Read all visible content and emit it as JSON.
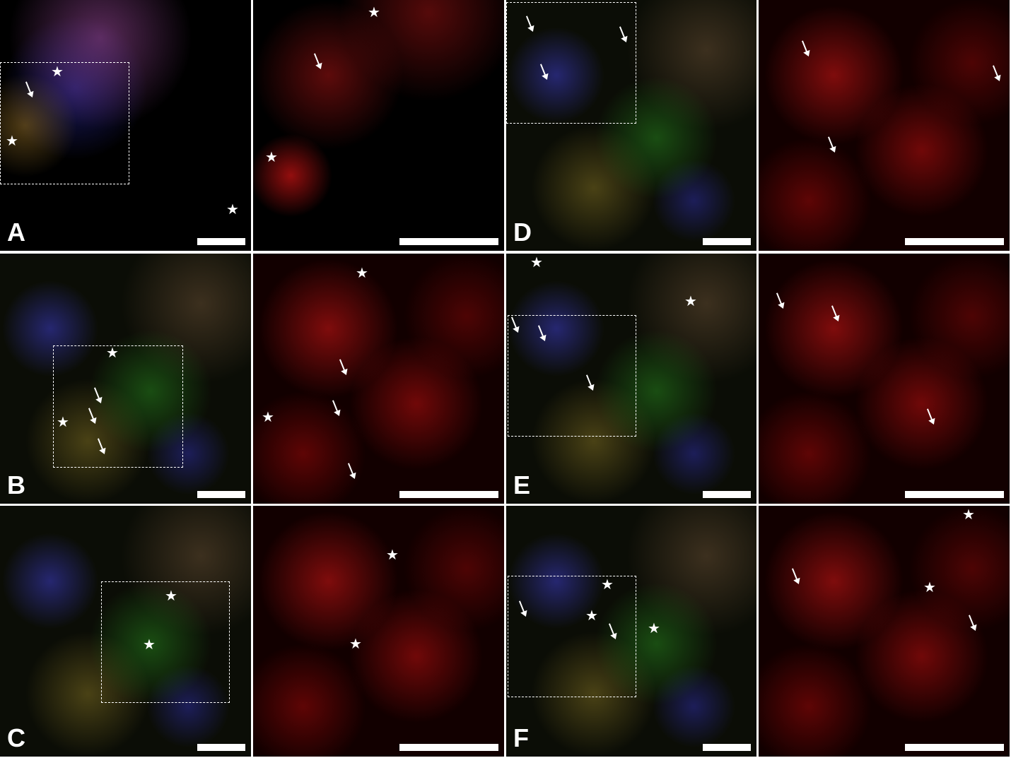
{
  "figure": {
    "panels": [
      {
        "label": "A",
        "type": "composite"
      },
      {
        "label": "",
        "type": "red-channel"
      },
      {
        "label": "D",
        "type": "composite"
      },
      {
        "label": "",
        "type": "red-channel"
      },
      {
        "label": "B",
        "type": "composite"
      },
      {
        "label": "",
        "type": "red-channel"
      },
      {
        "label": "E",
        "type": "composite"
      },
      {
        "label": "",
        "type": "red-channel"
      },
      {
        "label": "C",
        "type": "composite"
      },
      {
        "label": "",
        "type": "red-channel"
      },
      {
        "label": "F",
        "type": "composite"
      },
      {
        "label": "",
        "type": "red-channel"
      }
    ],
    "markers": {
      "star": "★",
      "arrow": "arrow-icon"
    },
    "colors": {
      "background": "#ffffff",
      "annotation": "#ffffff",
      "nuclei": "#3c3cc8",
      "green_channel": "#28a01e",
      "red_channel": "#c81414"
    }
  }
}
